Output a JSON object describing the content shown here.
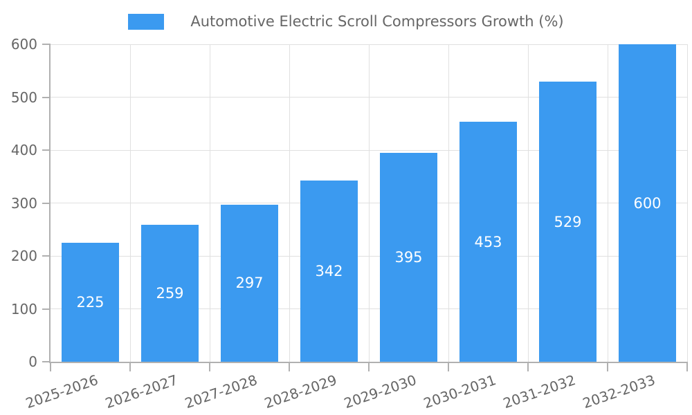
{
  "legend": {
    "label": "Automotive Electric Scroll Compressors Growth (%)"
  },
  "colors": {
    "bar": "#3B9AF0",
    "grid": "#E0E0E0",
    "axis_line": "#B0B0B0",
    "tick_text": "#666666",
    "legend_text": "#666666",
    "value_label": "#FFFFFF",
    "background": "#FFFFFF"
  },
  "chart_data": {
    "type": "bar",
    "title": "Automotive Electric Scroll Compressors Growth (%)",
    "series_name": "Automotive Electric Scroll Compressors Growth (%)",
    "categories": [
      "2025-2026",
      "2026-2027",
      "2027-2028",
      "2028-2029",
      "2029-2030",
      "2030-2031",
      "2031-2032",
      "2032-2033"
    ],
    "values": [
      225,
      259,
      297,
      342,
      395,
      453,
      529,
      600
    ],
    "xlabel": "",
    "ylabel": "",
    "ylim": [
      0,
      600
    ],
    "yticks": [
      0,
      100,
      200,
      300,
      400,
      500,
      600
    ],
    "grid": true,
    "x_label_rotation_deg": -19,
    "legend_position": "top-center",
    "value_label_position": "inside-center",
    "bar_color": "#3B9AF0",
    "value_label_color": "#FFFFFF"
  }
}
